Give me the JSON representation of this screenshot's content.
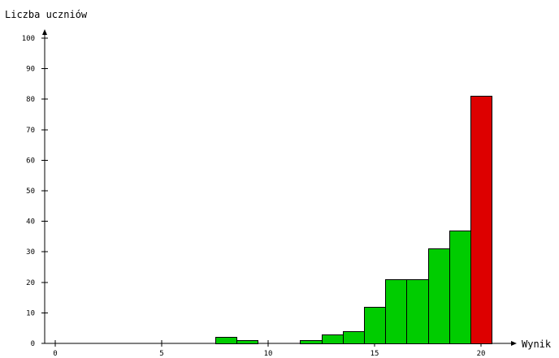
{
  "chart_data": {
    "type": "bar",
    "ylabel": "Liczba uczniów",
    "xlabel": "Wynik",
    "xlim": [
      0,
      20
    ],
    "ylim": [
      0,
      100
    ],
    "x_ticks": [
      0,
      5,
      10,
      15,
      20
    ],
    "y_ticks": [
      0,
      10,
      20,
      30,
      40,
      50,
      60,
      70,
      80,
      90,
      100
    ],
    "bar_width": 1,
    "bars": [
      {
        "x": 8,
        "value": 2,
        "color": "#00cc00"
      },
      {
        "x": 9,
        "value": 1,
        "color": "#00cc00"
      },
      {
        "x": 12,
        "value": 1,
        "color": "#00cc00"
      },
      {
        "x": 13,
        "value": 3,
        "color": "#00cc00"
      },
      {
        "x": 14,
        "value": 4,
        "color": "#00cc00"
      },
      {
        "x": 15,
        "value": 12,
        "color": "#00cc00"
      },
      {
        "x": 16,
        "value": 21,
        "color": "#00cc00"
      },
      {
        "x": 17,
        "value": 21,
        "color": "#00cc00"
      },
      {
        "x": 18,
        "value": 31,
        "color": "#00cc00"
      },
      {
        "x": 19,
        "value": 37,
        "color": "#00cc00"
      },
      {
        "x": 20,
        "value": 81,
        "color": "#dd0000"
      }
    ],
    "grid": false
  }
}
